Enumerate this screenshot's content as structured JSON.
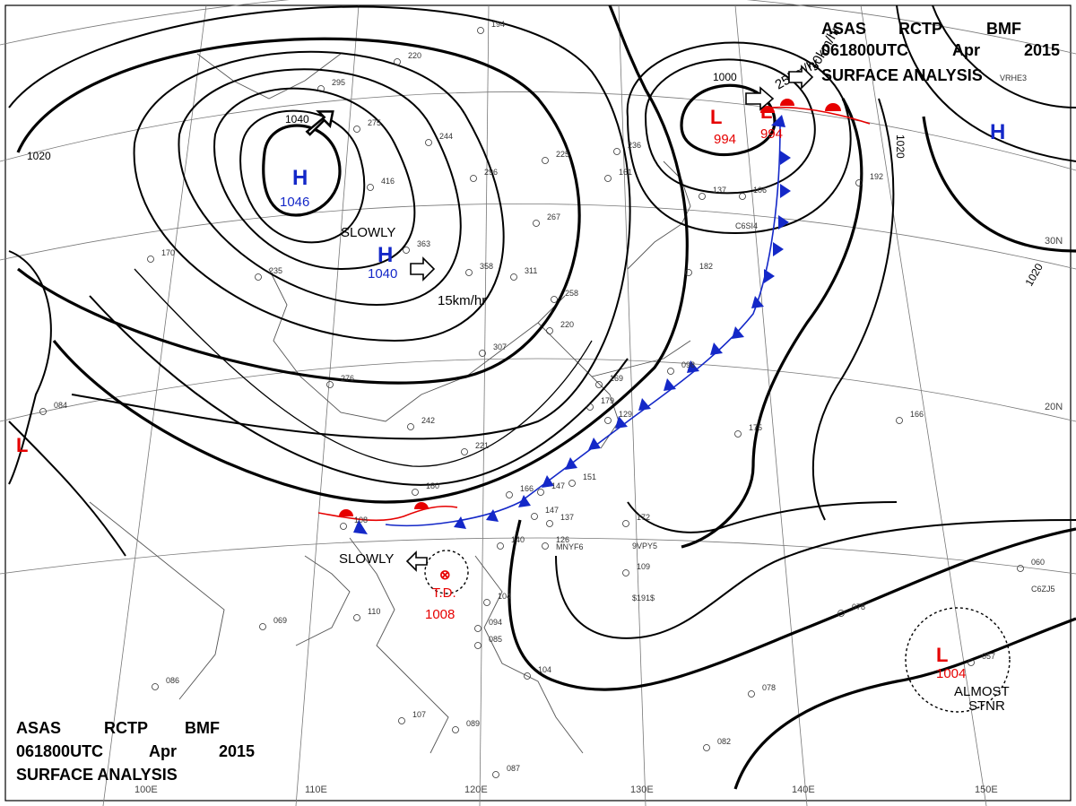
{
  "header": {
    "top": {
      "line1": [
        "ASAS",
        "RCTP",
        "BMF"
      ],
      "line2": [
        "061800UTC",
        "Apr",
        "2015"
      ],
      "line3": "SURFACE ANALYSIS"
    },
    "bottom": {
      "line1": [
        "ASAS",
        "RCTP",
        "BMF"
      ],
      "line2": [
        "061800UTC",
        "Apr",
        "2015"
      ],
      "line3": "SURFACE ANALYSIS"
    }
  },
  "graticule": {
    "lat_labels": [
      "30N",
      "20N"
    ],
    "lon_labels": [
      "100E",
      "110E",
      "120E",
      "130E",
      "140E",
      "150E"
    ]
  },
  "isobar_labels": [
    "1040",
    "1020",
    "1000",
    "1020",
    "1020"
  ],
  "pressure_centers": [
    {
      "symbol": "H",
      "value": "1046",
      "kind": "high"
    },
    {
      "symbol": "H",
      "value": "1040",
      "kind": "high"
    },
    {
      "symbol": "H",
      "value": "",
      "kind": "high"
    },
    {
      "symbol": "L",
      "value": "994",
      "kind": "low"
    },
    {
      "symbol": "L",
      "value": "994",
      "kind": "low"
    },
    {
      "symbol": "L",
      "value": "",
      "kind": "low"
    },
    {
      "symbol": "L",
      "value": "1004",
      "kind": "low"
    }
  ],
  "tropical_depression": {
    "label": "T.D.",
    "value": "1008"
  },
  "motion_notes": [
    "SLOWLY",
    "15km/hr",
    "SLOWLY",
    "25km/hr",
    "30km/hr",
    "ALMOST",
    "STNR"
  ],
  "colors": {
    "high": "#1428c8",
    "low": "#e60000",
    "cold_front": "#1428c8",
    "warm_front": "#e60000"
  },
  "stations": [
    "194",
    "220",
    "295",
    "275",
    "244",
    "225",
    "416",
    "296",
    "267",
    "363",
    "358",
    "311",
    "258",
    "220",
    "307",
    "276",
    "242",
    "221",
    "180",
    "166",
    "147",
    "137",
    "151",
    "140",
    "108",
    "110",
    "104",
    "094",
    "085",
    "104",
    "107",
    "089",
    "087",
    "175",
    "166",
    "172",
    "109",
    "078",
    "078",
    "057",
    "060",
    "082",
    "069",
    "086",
    "084",
    "170",
    "235",
    "236",
    "161",
    "169",
    "179",
    "182",
    "129",
    "098",
    "147",
    "126",
    "106",
    "137",
    "192"
  ],
  "station_codes": [
    "MNYF6",
    "9VPY5",
    "$191$",
    "C6SI4",
    "VRHE3",
    "C6ZJ5"
  ]
}
